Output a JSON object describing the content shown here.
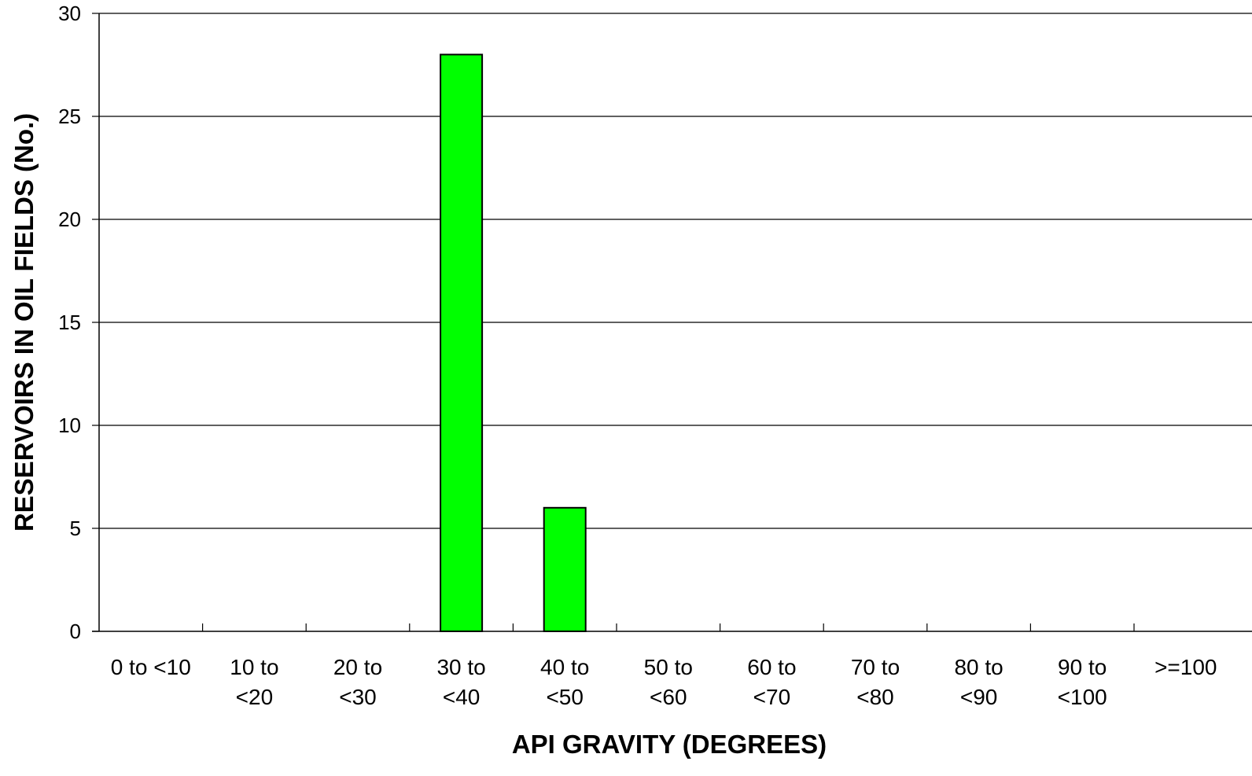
{
  "chart_data": {
    "type": "bar",
    "title": "",
    "xlabel": "API GRAVITY (DEGREES)",
    "ylabel": "RESERVOIRS IN OIL FIELDS (No.)",
    "categories": [
      [
        "0 to <10"
      ],
      [
        "10 to",
        "<20"
      ],
      [
        "20 to",
        "<30"
      ],
      [
        "30 to",
        "<40"
      ],
      [
        "40 to",
        "<50"
      ],
      [
        "50 to",
        "<60"
      ],
      [
        "60 to",
        "<70"
      ],
      [
        "70 to",
        "<80"
      ],
      [
        "80 to",
        "<90"
      ],
      [
        "90 to",
        "<100"
      ],
      [
        ">=100"
      ]
    ],
    "values": [
      0,
      0,
      0,
      28,
      6,
      0,
      0,
      0,
      0,
      0,
      0
    ],
    "ylim": [
      0,
      30
    ],
    "yticks": [
      0,
      5,
      10,
      15,
      20,
      25,
      30
    ],
    "grid": true,
    "legend": "none",
    "bar_color": "#00ff00",
    "bar_border_color": "#000000"
  }
}
